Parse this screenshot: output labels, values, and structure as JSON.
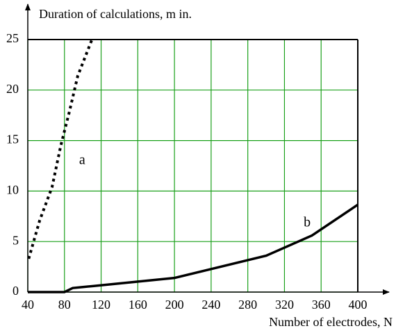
{
  "chart_data": {
    "type": "line",
    "ylabel": "Duration of calculations, m in.",
    "xlabel": "Number of electrodes, N",
    "xlim": [
      40,
      400
    ],
    "ylim": [
      0,
      25
    ],
    "xticks": [
      40,
      80,
      120,
      160,
      200,
      240,
      280,
      320,
      360,
      400
    ],
    "yticks": [
      0,
      5,
      10,
      15,
      20,
      25
    ],
    "grid": true,
    "grid_color": "#1aa01a",
    "series": [
      {
        "name": "a",
        "color": "#000000",
        "style": "dotted",
        "x": [
          41,
          53,
          66.5,
          76,
          85.5,
          94.5,
          110
        ],
        "values": [
          3.3,
          7.1,
          10.4,
          14.5,
          17.9,
          21.4,
          25
        ]
      },
      {
        "name": "b",
        "color": "#000000",
        "style": "solid",
        "x": [
          40,
          80,
          89,
          100,
          112,
          200,
          300,
          350,
          400
        ],
        "values": [
          0,
          0,
          0.4,
          0.5,
          0.6,
          1.4,
          3.6,
          5.6,
          8.65
        ]
      }
    ],
    "annotations": [
      {
        "text": "a",
        "x": 96,
        "y": 13
      },
      {
        "text": "b",
        "x": 341,
        "y": 6.8
      }
    ]
  }
}
